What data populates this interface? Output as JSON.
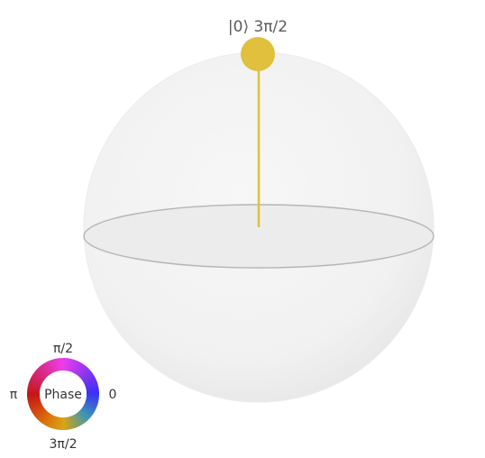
{
  "qsphere": {
    "state_label": "|0⟩ 3π/2",
    "state_color": "#e0c03c",
    "sphere_fill": "#f2f2f2",
    "equator_stroke": "#b5b5b5"
  },
  "phase_legend": {
    "center_label": "Phase",
    "top_label": "π/2",
    "left_label": "π",
    "right_label": "0",
    "bottom_label": "3π/2"
  }
}
